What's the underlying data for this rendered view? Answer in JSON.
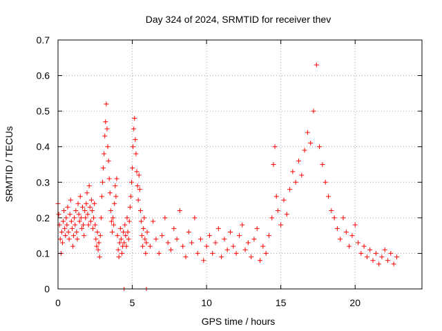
{
  "chart_data": {
    "type": "scatter",
    "title": "Day 324 of 2024, SRMTID for receiver thev",
    "xlabel": "GPS time / hours",
    "ylabel": "SRMTID / TECUs",
    "xlim": [
      0,
      24.5
    ],
    "ylim": [
      0,
      0.7
    ],
    "x_ticks": [
      0,
      5,
      10,
      15,
      20
    ],
    "y_ticks": [
      0,
      0.1,
      0.2,
      0.3,
      0.4,
      0.5,
      0.6,
      0.7
    ],
    "grid": true,
    "marker": "+",
    "series": [
      {
        "name": "SRMTID",
        "color": "#ff0000",
        "points": [
          [
            0.0,
            0.24
          ],
          [
            0.05,
            0.21
          ],
          [
            0.1,
            0.18
          ],
          [
            0.15,
            0.14
          ],
          [
            0.2,
            0.1
          ],
          [
            0.25,
            0.16
          ],
          [
            0.3,
            0.13
          ],
          [
            0.35,
            0.19
          ],
          [
            0.4,
            0.22
          ],
          [
            0.45,
            0.17
          ],
          [
            0.5,
            0.15
          ],
          [
            0.55,
            0.2
          ],
          [
            0.6,
            0.18
          ],
          [
            0.65,
            0.23
          ],
          [
            0.7,
            0.16
          ],
          [
            0.75,
            0.14
          ],
          [
            0.8,
            0.21
          ],
          [
            0.85,
            0.25
          ],
          [
            0.9,
            0.19
          ],
          [
            0.95,
            0.17
          ],
          [
            1.0,
            0.12
          ],
          [
            1.05,
            0.15
          ],
          [
            1.1,
            0.2
          ],
          [
            1.15,
            0.18
          ],
          [
            1.2,
            0.22
          ],
          [
            1.25,
            0.16
          ],
          [
            1.3,
            0.14
          ],
          [
            1.35,
            0.24
          ],
          [
            1.4,
            0.21
          ],
          [
            1.45,
            0.19
          ],
          [
            1.5,
            0.26
          ],
          [
            1.55,
            0.2
          ],
          [
            1.6,
            0.17
          ],
          [
            1.65,
            0.23
          ],
          [
            1.7,
            0.18
          ],
          [
            1.75,
            0.15
          ],
          [
            1.8,
            0.22
          ],
          [
            1.85,
            0.2
          ],
          [
            1.9,
            0.24
          ],
          [
            1.95,
            0.27
          ],
          [
            2.0,
            0.21
          ],
          [
            2.05,
            0.18
          ],
          [
            2.1,
            0.29
          ],
          [
            2.15,
            0.23
          ],
          [
            2.2,
            0.19
          ],
          [
            2.25,
            0.25
          ],
          [
            2.3,
            0.22
          ],
          [
            2.35,
            0.17
          ],
          [
            2.4,
            0.2
          ],
          [
            2.45,
            0.24
          ],
          [
            2.5,
            0.18
          ],
          [
            2.55,
            0.14
          ],
          [
            2.6,
            0.12
          ],
          [
            2.65,
            0.16
          ],
          [
            2.7,
            0.11
          ],
          [
            2.75,
            0.13
          ],
          [
            2.8,
            0.09
          ],
          [
            2.85,
            0.15
          ],
          [
            2.9,
            0.2
          ],
          [
            2.95,
            0.26
          ],
          [
            3.0,
            0.3
          ],
          [
            3.05,
            0.34
          ],
          [
            3.1,
            0.38
          ],
          [
            3.15,
            0.43
          ],
          [
            3.2,
            0.47
          ],
          [
            3.25,
            0.52
          ],
          [
            3.3,
            0.45
          ],
          [
            3.35,
            0.4
          ],
          [
            3.4,
            0.36
          ],
          [
            3.45,
            0.31
          ],
          [
            3.5,
            0.27
          ],
          [
            3.55,
            0.22
          ],
          [
            3.6,
            0.19
          ],
          [
            3.65,
            0.16
          ],
          [
            3.7,
            0.2
          ],
          [
            3.75,
            0.18
          ],
          [
            3.8,
            0.24
          ],
          [
            3.85,
            0.29
          ],
          [
            3.9,
            0.26
          ],
          [
            3.95,
            0.31
          ],
          [
            4.0,
            0.15
          ],
          [
            4.05,
            0.11
          ],
          [
            4.1,
            0.09
          ],
          [
            4.15,
            0.13
          ],
          [
            4.2,
            0.17
          ],
          [
            4.25,
            0.14
          ],
          [
            4.3,
            0.1
          ],
          [
            4.35,
            0.12
          ],
          [
            4.4,
            0.16
          ],
          [
            4.45,
            0.13
          ],
          [
            4.5,
            0.18
          ],
          [
            4.55,
            0.15
          ],
          [
            4.6,
            0.12
          ],
          [
            4.65,
            0.2
          ],
          [
            4.7,
            0.16
          ],
          [
            4.75,
            0.14
          ],
          [
            4.8,
            0.19
          ],
          [
            4.85,
            0.23
          ],
          [
            4.9,
            0.26
          ],
          [
            4.95,
            0.3
          ],
          [
            5.0,
            0.34
          ],
          [
            5.05,
            0.4
          ],
          [
            5.1,
            0.45
          ],
          [
            5.15,
            0.48
          ],
          [
            5.2,
            0.42
          ],
          [
            5.25,
            0.38
          ],
          [
            5.3,
            0.33
          ],
          [
            5.35,
            0.29
          ],
          [
            5.4,
            0.25
          ],
          [
            5.45,
            0.32
          ],
          [
            5.5,
            0.28
          ],
          [
            5.55,
            0.22
          ],
          [
            5.6,
            0.19
          ],
          [
            5.65,
            0.15
          ],
          [
            5.7,
            0.12
          ],
          [
            5.75,
            0.17
          ],
          [
            5.8,
            0.2
          ],
          [
            5.85,
            0.14
          ],
          [
            5.9,
            0.1
          ],
          [
            5.95,
            0.13
          ],
          [
            6.0,
            0.16
          ],
          [
            6.2,
            0.12
          ],
          [
            6.4,
            0.19
          ],
          [
            6.6,
            0.14
          ],
          [
            6.8,
            0.1
          ],
          [
            7.0,
            0.15
          ],
          [
            7.2,
            0.2
          ],
          [
            7.4,
            0.13
          ],
          [
            7.6,
            0.11
          ],
          [
            7.8,
            0.17
          ],
          [
            8.0,
            0.14
          ],
          [
            8.2,
            0.22
          ],
          [
            8.4,
            0.12
          ],
          [
            8.6,
            0.09
          ],
          [
            8.8,
            0.16
          ],
          [
            9.0,
            0.13
          ],
          [
            9.2,
            0.2
          ],
          [
            9.4,
            0.1
          ],
          [
            9.6,
            0.14
          ],
          [
            9.8,
            0.08
          ],
          [
            10.0,
            0.12
          ],
          [
            10.2,
            0.15
          ],
          [
            10.4,
            0.1
          ],
          [
            10.6,
            0.13
          ],
          [
            10.8,
            0.17
          ],
          [
            11.0,
            0.09
          ],
          [
            11.2,
            0.14
          ],
          [
            11.4,
            0.11
          ],
          [
            11.6,
            0.16
          ],
          [
            11.8,
            0.12
          ],
          [
            12.0,
            0.1
          ],
          [
            12.2,
            0.15
          ],
          [
            12.4,
            0.18
          ],
          [
            12.6,
            0.11
          ],
          [
            12.8,
            0.13
          ],
          [
            13.0,
            0.09
          ],
          [
            13.2,
            0.14
          ],
          [
            13.4,
            0.17
          ],
          [
            13.6,
            0.08
          ],
          [
            13.8,
            0.12
          ],
          [
            14.0,
            0.1
          ],
          [
            14.2,
            0.15
          ],
          [
            14.4,
            0.2
          ],
          [
            14.5,
            0.35
          ],
          [
            14.6,
            0.4
          ],
          [
            14.7,
            0.26
          ],
          [
            14.8,
            0.22
          ],
          [
            15.0,
            0.18
          ],
          [
            15.2,
            0.25
          ],
          [
            15.4,
            0.21
          ],
          [
            15.6,
            0.28
          ],
          [
            15.8,
            0.33
          ],
          [
            16.0,
            0.3
          ],
          [
            16.2,
            0.36
          ],
          [
            16.4,
            0.32
          ],
          [
            16.6,
            0.39
          ],
          [
            16.8,
            0.44
          ],
          [
            17.0,
            0.41
          ],
          [
            17.2,
            0.5
          ],
          [
            17.4,
            0.63
          ],
          [
            17.6,
            0.4
          ],
          [
            17.8,
            0.35
          ],
          [
            18.0,
            0.3
          ],
          [
            18.2,
            0.26
          ],
          [
            18.4,
            0.22
          ],
          [
            18.6,
            0.2
          ],
          [
            18.8,
            0.17
          ],
          [
            19.0,
            0.14
          ],
          [
            19.2,
            0.2
          ],
          [
            19.4,
            0.16
          ],
          [
            19.6,
            0.12
          ],
          [
            19.8,
            0.15
          ],
          [
            20.0,
            0.18
          ],
          [
            20.2,
            0.13
          ],
          [
            20.4,
            0.1
          ],
          [
            20.6,
            0.12
          ],
          [
            20.8,
            0.09
          ],
          [
            21.0,
            0.11
          ],
          [
            21.2,
            0.08
          ],
          [
            21.4,
            0.1
          ],
          [
            21.6,
            0.07
          ],
          [
            21.8,
            0.09
          ],
          [
            22.0,
            0.11
          ],
          [
            22.2,
            0.08
          ],
          [
            22.4,
            0.1
          ],
          [
            22.6,
            0.07
          ],
          [
            22.8,
            0.09
          ]
        ]
      }
    ],
    "zero_markers": [
      [
        4.45,
        0.0
      ],
      [
        5.95,
        0.0
      ]
    ]
  }
}
